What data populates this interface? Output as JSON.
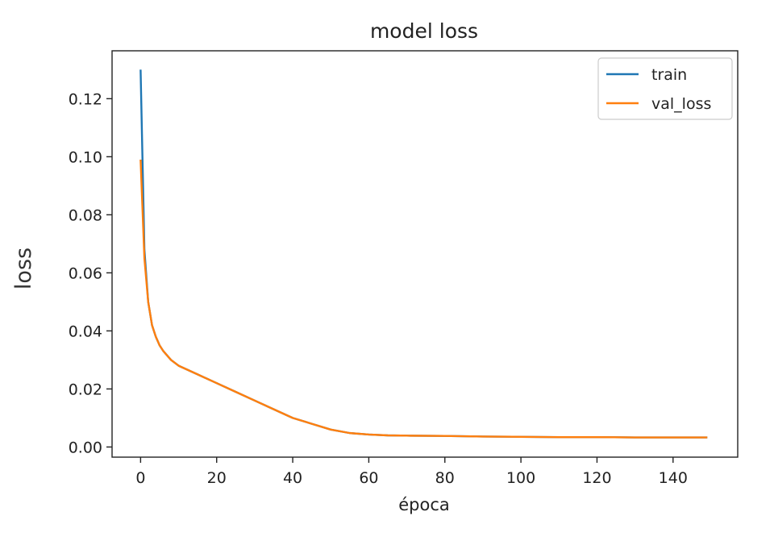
{
  "chart_data": {
    "type": "line",
    "title": "model loss",
    "xlabel": "época",
    "ylabel": "loss",
    "xlim": [
      -7.5,
      157
    ],
    "ylim": [
      -0.0035,
      0.1365
    ],
    "xticks": [
      0,
      20,
      40,
      60,
      80,
      100,
      120,
      140
    ],
    "xtick_labels": [
      "0",
      "20",
      "40",
      "60",
      "80",
      "100",
      "120",
      "140"
    ],
    "yticks": [
      0.0,
      0.02,
      0.04,
      0.06,
      0.08,
      0.1,
      0.12
    ],
    "ytick_labels": [
      "0.00",
      "0.02",
      "0.04",
      "0.06",
      "0.08",
      "0.10",
      "0.12"
    ],
    "grid": false,
    "legend_position": "top-right",
    "series": [
      {
        "name": "train",
        "color": "#1f77b4",
        "x": [
          0,
          1,
          2,
          3,
          4,
          5,
          6,
          8,
          10,
          15,
          20,
          25,
          30,
          35,
          40,
          45,
          50,
          55,
          60,
          65,
          70,
          80,
          90,
          100,
          110,
          120,
          130,
          140,
          149
        ],
        "y": [
          0.13,
          0.068,
          0.05,
          0.042,
          0.038,
          0.035,
          0.033,
          0.03,
          0.028,
          0.025,
          0.022,
          0.019,
          0.016,
          0.013,
          0.01,
          0.008,
          0.006,
          0.0048,
          0.0043,
          0.004,
          0.0039,
          0.0038,
          0.0036,
          0.0035,
          0.0034,
          0.0034,
          0.0033,
          0.0033,
          0.0033
        ]
      },
      {
        "name": "val_loss",
        "color": "#ff7f0e",
        "x": [
          0,
          1,
          2,
          3,
          4,
          5,
          6,
          8,
          10,
          15,
          20,
          25,
          30,
          35,
          40,
          45,
          50,
          55,
          60,
          65,
          70,
          80,
          90,
          100,
          110,
          120,
          130,
          140,
          149
        ],
        "y": [
          0.099,
          0.065,
          0.05,
          0.042,
          0.038,
          0.035,
          0.033,
          0.03,
          0.028,
          0.025,
          0.022,
          0.019,
          0.016,
          0.013,
          0.01,
          0.008,
          0.006,
          0.0048,
          0.0043,
          0.004,
          0.0039,
          0.0038,
          0.0036,
          0.0035,
          0.0034,
          0.0034,
          0.0033,
          0.0033,
          0.0033
        ]
      }
    ]
  }
}
